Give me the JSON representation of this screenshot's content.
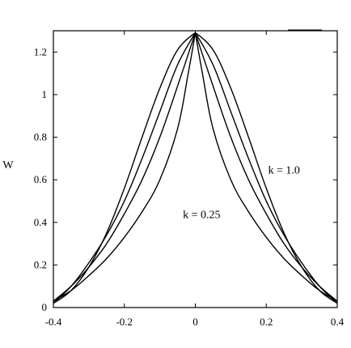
{
  "chart_data": {
    "type": "line",
    "title": "",
    "xlabel": "",
    "ylabel": "W",
    "xlim": [
      -0.4,
      0.4
    ],
    "ylim": [
      0,
      1.3
    ],
    "xticks": [
      -0.4,
      -0.2,
      0,
      0.2,
      0.4
    ],
    "xtick_labels": [
      "-0.4",
      "-0.2",
      "0",
      "0.2",
      "0.4"
    ],
    "yticks": [
      0,
      0.2,
      0.4,
      0.6,
      0.8,
      1.0,
      1.2
    ],
    "ytick_labels": [
      "0",
      "0.2",
      "0.4",
      "0.6",
      "0.8",
      "1",
      "1.2"
    ],
    "grid": false,
    "legend": "none",
    "series": [
      {
        "x": [
          -0.4,
          -0.35,
          -0.3,
          -0.25,
          -0.2,
          -0.15,
          -0.1,
          -0.05,
          -0.02,
          0,
          0.02,
          0.05,
          0.1,
          0.15,
          0.2,
          0.25,
          0.3,
          0.35,
          0.4
        ],
        "y": [
          0.03,
          0.08,
          0.15,
          0.23,
          0.33,
          0.45,
          0.6,
          0.84,
          1.1,
          1.29,
          1.1,
          0.84,
          0.6,
          0.45,
          0.33,
          0.23,
          0.15,
          0.08,
          0.03
        ]
      },
      {
        "x": [
          -0.4,
          -0.35,
          -0.3,
          -0.25,
          -0.2,
          -0.15,
          -0.1,
          -0.05,
          0,
          0.05,
          0.1,
          0.15,
          0.2,
          0.25,
          0.3,
          0.35,
          0.4
        ],
        "y": [
          0.03,
          0.1,
          0.19,
          0.3,
          0.44,
          0.6,
          0.8,
          1.04,
          1.29,
          1.04,
          0.8,
          0.6,
          0.44,
          0.3,
          0.19,
          0.1,
          0.03
        ]
      },
      {
        "x": [
          -0.4,
          -0.35,
          -0.3,
          -0.25,
          -0.2,
          -0.15,
          -0.1,
          -0.05,
          0,
          0.05,
          0.1,
          0.15,
          0.2,
          0.25,
          0.3,
          0.35,
          0.4
        ],
        "y": [
          0.02,
          0.1,
          0.21,
          0.34,
          0.5,
          0.7,
          0.92,
          1.14,
          1.29,
          1.14,
          0.92,
          0.7,
          0.5,
          0.34,
          0.21,
          0.1,
          0.02
        ]
      },
      {
        "x": [
          -0.4,
          -0.35,
          -0.3,
          -0.25,
          -0.2,
          -0.15,
          -0.1,
          -0.05,
          0,
          0.05,
          0.1,
          0.15,
          0.2,
          0.25,
          0.3,
          0.35,
          0.4
        ],
        "y": [
          0.02,
          0.08,
          0.19,
          0.35,
          0.56,
          0.8,
          1.03,
          1.21,
          1.29,
          1.21,
          1.03,
          0.8,
          0.56,
          0.35,
          0.19,
          0.08,
          0.02
        ]
      }
    ],
    "annotations": [
      {
        "text": "k = 1.0",
        "x": 0.205,
        "y": 0.63
      },
      {
        "text": "k = 0.25",
        "x": -0.035,
        "y": 0.42
      }
    ]
  }
}
